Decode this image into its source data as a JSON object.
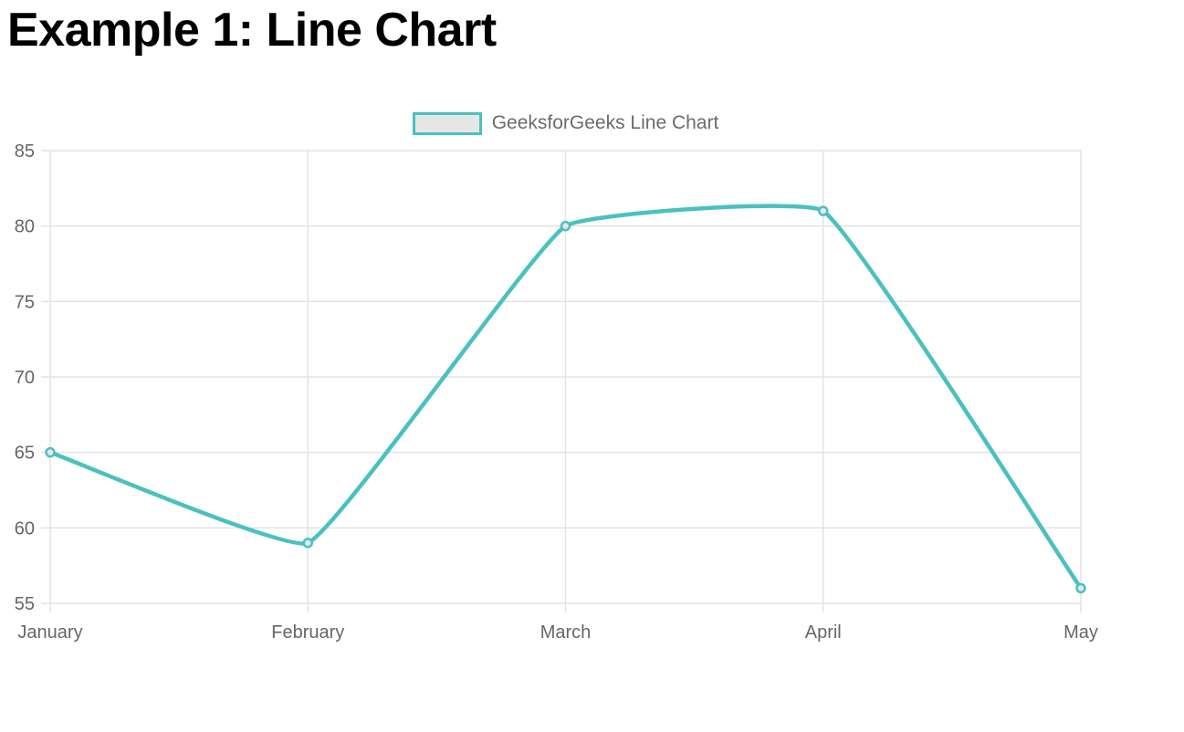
{
  "page_title": "Example 1: Line Chart",
  "chart_data": {
    "type": "line",
    "title": "",
    "categories": [
      "January",
      "February",
      "March",
      "April",
      "May"
    ],
    "series": [
      {
        "name": "GeeksforGeeks Line Chart",
        "values": [
          65,
          59,
          80,
          81,
          56
        ]
      }
    ],
    "xlabel": "",
    "ylabel": "",
    "ylim": [
      55,
      85
    ],
    "ytick_step": 5,
    "yticks": [
      55,
      60,
      65,
      70,
      75,
      80,
      85
    ],
    "grid": true,
    "legend_position": "top",
    "line_tension": 0.1,
    "colors": {
      "line": "#4BC0C0",
      "point_fill": "#E6E6E6",
      "legend_fill": "#E6E6E6",
      "grid": "#E3E3E3",
      "tick_text": "#666666",
      "legend_text": "#6b6b6b",
      "title_text": "#000000"
    }
  }
}
